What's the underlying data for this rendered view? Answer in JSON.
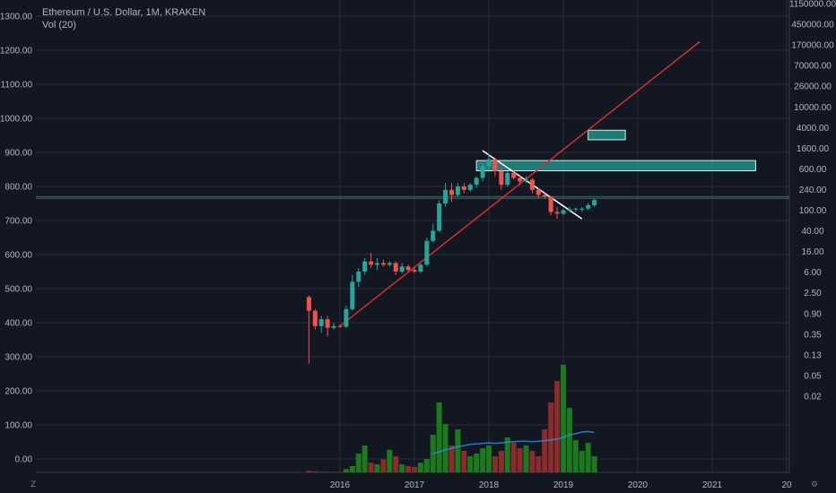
{
  "header": {
    "symbol_line": "Ethereum / U.S. Dollar, 1M, KRAKEN",
    "indicator_line": "Vol (20)"
  },
  "colors": {
    "background": "#131722",
    "grid": "#2a2e39",
    "axis_text": "#b2b5be",
    "up": "#26a69a",
    "down": "#ef5350",
    "vol_up": "#1b7a1b",
    "vol_down": "#8b2c2c",
    "vol_ma": "#2196f3",
    "trendline_red": "#d32f2f",
    "trendline_white": "#ffffff",
    "zone_fill": "#26a69a",
    "hline": "#3f6d63"
  },
  "bottom_icons": {
    "left": "Z",
    "right": "gear-icon"
  },
  "chart_data": {
    "type": "candlestick",
    "title": "Ethereum / U.S. Dollar, 1M, KRAKEN",
    "left_axis": {
      "ticks": [
        "1300.00",
        "1200.00",
        "1100.00",
        "1000.00",
        "900.00",
        "800.00",
        "700.00",
        "600.00",
        "500.00",
        "400.00",
        "300.00",
        "200.00",
        "100.00",
        "0.00"
      ],
      "ylim": [
        -40,
        1340
      ]
    },
    "right_axis": {
      "scale": "log",
      "ticks": [
        "1150000.00",
        "450000.00",
        "170000.00",
        "70000.00",
        "26000.00",
        "10000.00",
        "4000.00",
        "1600.00",
        "600.00",
        "240.00",
        "100.00",
        "40.00",
        "16.00",
        "6.00",
        "2.50",
        "0.90",
        "0.35",
        "0.13",
        "0.05",
        "0.02"
      ]
    },
    "x_axis": {
      "ticks": [
        "2016",
        "2017",
        "2018",
        "2019",
        "2020",
        "2021",
        "20"
      ],
      "start": "2015-08",
      "end": "2021-11"
    },
    "candles": [
      {
        "t": "2015-08",
        "o": 475,
        "h": 480,
        "l": 280,
        "c": 435
      },
      {
        "t": "2015-09",
        "o": 435,
        "h": 440,
        "l": 380,
        "c": 390
      },
      {
        "t": "2015-10",
        "o": 390,
        "h": 420,
        "l": 370,
        "c": 410
      },
      {
        "t": "2015-11",
        "o": 410,
        "h": 420,
        "l": 360,
        "c": 385
      },
      {
        "t": "2015-12",
        "o": 385,
        "h": 400,
        "l": 380,
        "c": 390
      },
      {
        "t": "2016-01",
        "o": 390,
        "h": 395,
        "l": 385,
        "c": 388
      },
      {
        "t": "2016-02",
        "o": 388,
        "h": 450,
        "l": 385,
        "c": 440
      },
      {
        "t": "2016-03",
        "o": 440,
        "h": 540,
        "l": 435,
        "c": 520
      },
      {
        "t": "2016-04",
        "o": 520,
        "h": 560,
        "l": 505,
        "c": 550
      },
      {
        "t": "2016-05",
        "o": 550,
        "h": 590,
        "l": 540,
        "c": 580
      },
      {
        "t": "2016-06",
        "o": 580,
        "h": 605,
        "l": 560,
        "c": 570
      },
      {
        "t": "2016-07",
        "o": 570,
        "h": 590,
        "l": 555,
        "c": 575
      },
      {
        "t": "2016-08",
        "o": 575,
        "h": 585,
        "l": 565,
        "c": 570
      },
      {
        "t": "2016-09",
        "o": 570,
        "h": 580,
        "l": 565,
        "c": 575
      },
      {
        "t": "2016-10",
        "o": 575,
        "h": 580,
        "l": 540,
        "c": 550
      },
      {
        "t": "2016-11",
        "o": 550,
        "h": 575,
        "l": 545,
        "c": 565
      },
      {
        "t": "2016-12",
        "o": 565,
        "h": 570,
        "l": 550,
        "c": 555
      },
      {
        "t": "2017-01",
        "o": 555,
        "h": 565,
        "l": 545,
        "c": 550
      },
      {
        "t": "2017-02",
        "o": 550,
        "h": 575,
        "l": 545,
        "c": 570
      },
      {
        "t": "2017-03",
        "o": 570,
        "h": 650,
        "l": 565,
        "c": 640
      },
      {
        "t": "2017-04",
        "o": 640,
        "h": 690,
        "l": 635,
        "c": 670
      },
      {
        "t": "2017-05",
        "o": 670,
        "h": 760,
        "l": 665,
        "c": 750
      },
      {
        "t": "2017-06",
        "o": 750,
        "h": 810,
        "l": 740,
        "c": 790
      },
      {
        "t": "2017-07",
        "o": 790,
        "h": 810,
        "l": 755,
        "c": 775
      },
      {
        "t": "2017-08",
        "o": 775,
        "h": 810,
        "l": 770,
        "c": 800
      },
      {
        "t": "2017-09",
        "o": 800,
        "h": 810,
        "l": 780,
        "c": 790
      },
      {
        "t": "2017-10",
        "o": 790,
        "h": 810,
        "l": 785,
        "c": 805
      },
      {
        "t": "2017-11",
        "o": 805,
        "h": 830,
        "l": 795,
        "c": 825
      },
      {
        "t": "2017-12",
        "o": 825,
        "h": 870,
        "l": 815,
        "c": 860
      },
      {
        "t": "2018-01",
        "o": 860,
        "h": 895,
        "l": 850,
        "c": 880
      },
      {
        "t": "2018-02",
        "o": 880,
        "h": 885,
        "l": 830,
        "c": 845
      },
      {
        "t": "2018-03",
        "o": 845,
        "h": 855,
        "l": 790,
        "c": 805
      },
      {
        "t": "2018-04",
        "o": 805,
        "h": 845,
        "l": 800,
        "c": 840
      },
      {
        "t": "2018-05",
        "o": 840,
        "h": 850,
        "l": 820,
        "c": 825
      },
      {
        "t": "2018-06",
        "o": 825,
        "h": 835,
        "l": 805,
        "c": 815
      },
      {
        "t": "2018-07",
        "o": 815,
        "h": 830,
        "l": 810,
        "c": 820
      },
      {
        "t": "2018-08",
        "o": 820,
        "h": 825,
        "l": 780,
        "c": 790
      },
      {
        "t": "2018-09",
        "o": 790,
        "h": 795,
        "l": 765,
        "c": 775
      },
      {
        "t": "2018-10",
        "o": 775,
        "h": 780,
        "l": 765,
        "c": 770
      },
      {
        "t": "2018-11",
        "o": 770,
        "h": 772,
        "l": 715,
        "c": 725
      },
      {
        "t": "2018-12",
        "o": 725,
        "h": 740,
        "l": 705,
        "c": 720
      },
      {
        "t": "2019-01",
        "o": 720,
        "h": 735,
        "l": 715,
        "c": 730
      },
      {
        "t": "2019-02",
        "o": 728,
        "h": 740,
        "l": 725,
        "c": 733
      },
      {
        "t": "2019-03",
        "o": 733,
        "h": 738,
        "l": 725,
        "c": 735
      },
      {
        "t": "2019-04",
        "o": 732,
        "h": 740,
        "l": 725,
        "c": 735
      },
      {
        "t": "2019-05",
        "o": 735,
        "h": 752,
        "l": 730,
        "c": 745
      },
      {
        "t": "2019-06",
        "o": 745,
        "h": 765,
        "l": 740,
        "c": 760
      }
    ],
    "volume": [
      3,
      2,
      1,
      1,
      1,
      1,
      6,
      12,
      35,
      50,
      18,
      15,
      24,
      42,
      30,
      15,
      12,
      10,
      18,
      25,
      70,
      130,
      90,
      50,
      80,
      40,
      30,
      35,
      45,
      50,
      30,
      40,
      65,
      55,
      45,
      50,
      40,
      30,
      80,
      130,
      170,
      200,
      120,
      60,
      40,
      55,
      30
    ],
    "volume_ma": {
      "name": "Vol (20)",
      "start_index": 20,
      "values": [
        35,
        38,
        42,
        45,
        48,
        50,
        52,
        53,
        54,
        55,
        54,
        55,
        56,
        57,
        58,
        58,
        57,
        58,
        59,
        60,
        62,
        65,
        70,
        72,
        75,
        76,
        74
      ]
    },
    "annotations": [
      {
        "type": "trendline",
        "color": "red",
        "from": {
          "t": "2016-01",
          "y": 390
        },
        "to": {
          "t": "2020-11",
          "y": 1225
        }
      },
      {
        "type": "trendline",
        "color": "white",
        "from": {
          "t": "2017-12",
          "y": 905
        },
        "to": {
          "t": "2019-04",
          "y": 705
        }
      },
      {
        "type": "zone",
        "from_t": "2017-11",
        "to_t": "2021-08",
        "y1": 876,
        "y2": 846
      },
      {
        "type": "zone",
        "from_t": "2019-05",
        "to_t": "2019-11",
        "y1": 965,
        "y2": 937
      },
      {
        "type": "hline",
        "y": 770
      },
      {
        "type": "hline",
        "y": 765
      }
    ]
  }
}
